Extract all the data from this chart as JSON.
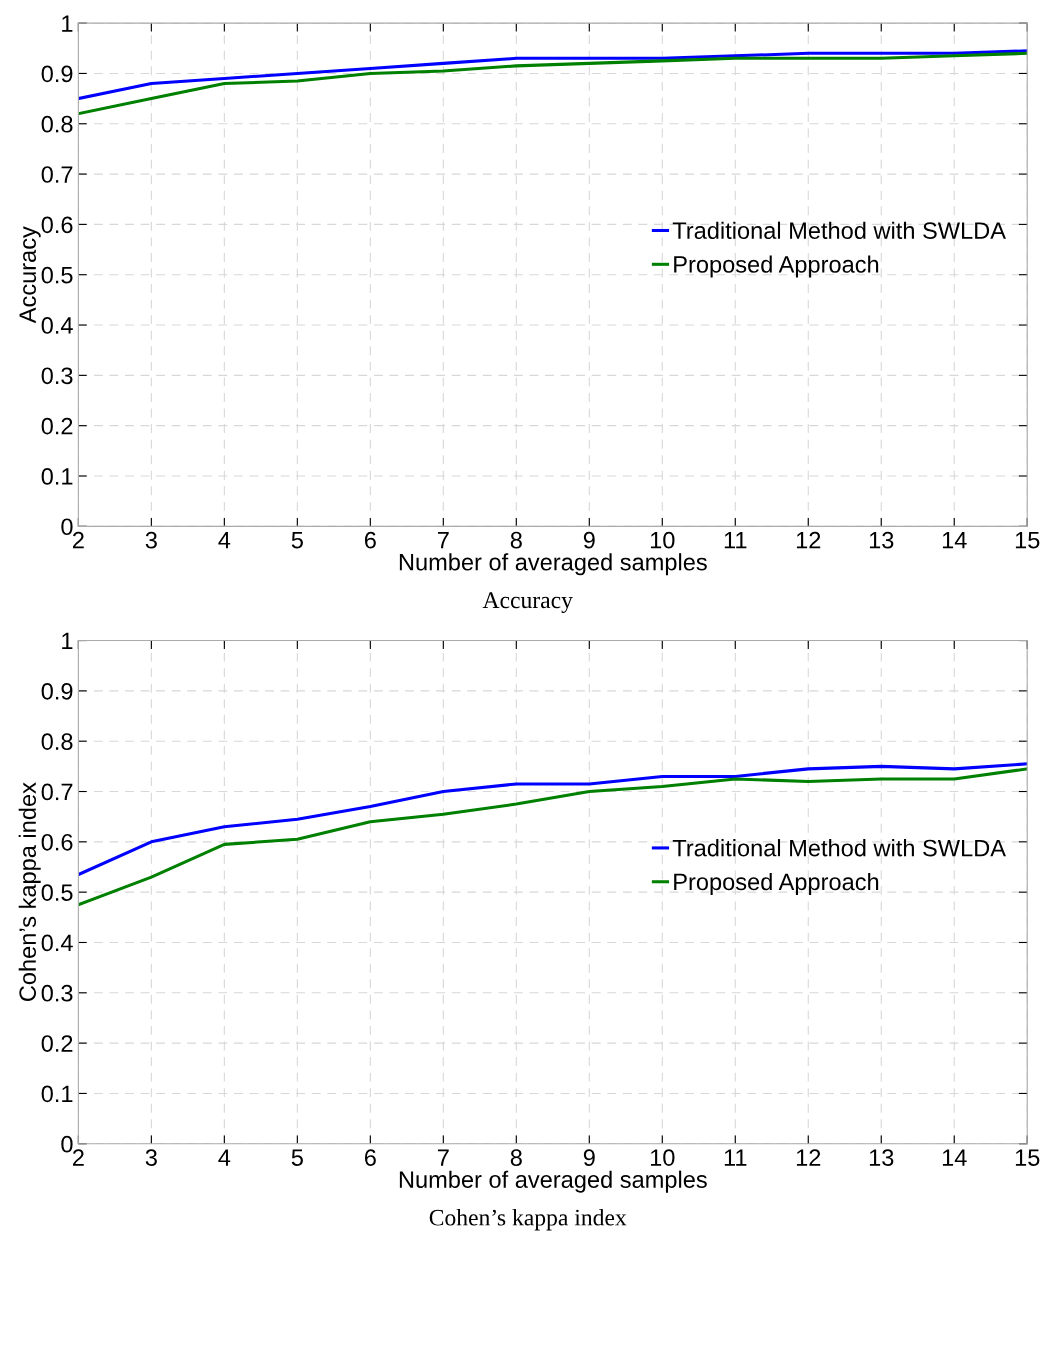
{
  "chart_data": [
    {
      "type": "line",
      "xlabel": "Number of averaged samples",
      "ylabel": "Accuracy",
      "annotations": [
        "Accuracy"
      ],
      "x": [
        2,
        3,
        4,
        5,
        6,
        7,
        8,
        9,
        10,
        11,
        12,
        13,
        14,
        15
      ],
      "series": [
        {
          "name": "Traditional Method with SWLDA",
          "color": "#0000ff",
          "values": [
            0.85,
            0.88,
            0.89,
            0.9,
            0.91,
            0.92,
            0.93,
            0.93,
            0.93,
            0.935,
            0.94,
            0.94,
            0.94,
            0.945
          ]
        },
        {
          "name": "Proposed Approach",
          "color": "#008000",
          "values": [
            0.82,
            0.85,
            0.88,
            0.885,
            0.9,
            0.905,
            0.915,
            0.92,
            0.925,
            0.93,
            0.93,
            0.93,
            0.935,
            0.94
          ]
        }
      ],
      "xlim": [
        2,
        15
      ],
      "xticks": [
        2,
        3,
        4,
        5,
        6,
        7,
        8,
        9,
        10,
        11,
        12,
        13,
        14,
        15
      ],
      "ylim": [
        0,
        1
      ],
      "yticks": [
        0,
        0.1,
        0.2,
        0.3,
        0.4,
        0.5,
        0.6,
        0.7,
        0.8,
        0.9,
        1
      ],
      "grid": true,
      "legend": "center right",
      "line_style": "solid",
      "marker": "none"
    },
    {
      "type": "line",
      "xlabel": "Number of averaged samples",
      "ylabel": "Cohen’s kappa index",
      "annotations": [
        "Cohen’s kappa index"
      ],
      "x": [
        2,
        3,
        4,
        5,
        6,
        7,
        8,
        9,
        10,
        11,
        12,
        13,
        14,
        15
      ],
      "series": [
        {
          "name": "Traditional Method with SWLDA",
          "color": "#0000ff",
          "values": [
            0.535,
            0.6,
            0.63,
            0.645,
            0.67,
            0.7,
            0.715,
            0.715,
            0.73,
            0.73,
            0.745,
            0.75,
            0.745,
            0.755
          ]
        },
        {
          "name": "Proposed Approach",
          "color": "#008000",
          "values": [
            0.475,
            0.53,
            0.595,
            0.605,
            0.64,
            0.655,
            0.675,
            0.7,
            0.71,
            0.725,
            0.72,
            0.725,
            0.725,
            0.745
          ]
        }
      ],
      "xlim": [
        2,
        15
      ],
      "xticks": [
        2,
        3,
        4,
        5,
        6,
        7,
        8,
        9,
        10,
        11,
        12,
        13,
        14,
        15
      ],
      "ylim": [
        0,
        1
      ],
      "yticks": [
        0,
        0.1,
        0.2,
        0.3,
        0.4,
        0.5,
        0.6,
        0.7,
        0.8,
        0.9,
        1
      ],
      "grid": true,
      "legend": "center right",
      "line_style": "solid",
      "marker": "none"
    }
  ]
}
